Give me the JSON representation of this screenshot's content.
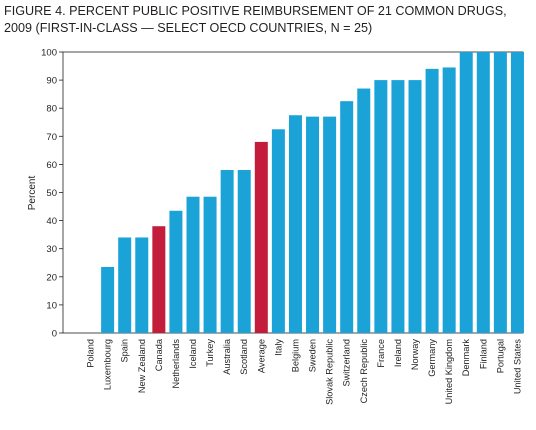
{
  "chart_data": {
    "type": "bar",
    "title_line1": "FIGURE 4. PERCENT PUBLIC POSITIVE REIMBURSEMENT OF 21 COMMON DRUGS,",
    "title_line2": "2009 (FIRST-IN-CLASS — SELECT OECD COUNTRIES, N = 25)",
    "ylabel": "Percent",
    "xlabel": "",
    "ylim": [
      0,
      100
    ],
    "yticks": [
      0,
      10,
      20,
      30,
      40,
      50,
      60,
      70,
      80,
      90,
      100
    ],
    "grid": false,
    "categories": [
      "Poland",
      "Luxembourg",
      "Spain",
      "New Zealand",
      "Canada",
      "Netherlands",
      "Iceland",
      "Turkey",
      "Australia",
      "Scotland",
      "Average",
      "Italy",
      "Belgium",
      "Sweden",
      "Slovak Republic",
      "Switzerland",
      "Czech Republic",
      "France",
      "Ireland",
      "Norway",
      "Germany",
      "United Kingdom",
      "Denmark",
      "Finland",
      "Portugal",
      "United States"
    ],
    "values": [
      0,
      23.5,
      34,
      34,
      38,
      43.5,
      48.5,
      48.5,
      58,
      58,
      68,
      72.5,
      77.5,
      77,
      77,
      82.5,
      87,
      90,
      90,
      90,
      94,
      94.5,
      100,
      100,
      100,
      100
    ],
    "highlight": [
      "Canada",
      "Average"
    ],
    "colors": {
      "bar": "#1ba3d8",
      "highlight": "#c31d3b",
      "axis": "#231f20",
      "text": "#231f20"
    }
  }
}
